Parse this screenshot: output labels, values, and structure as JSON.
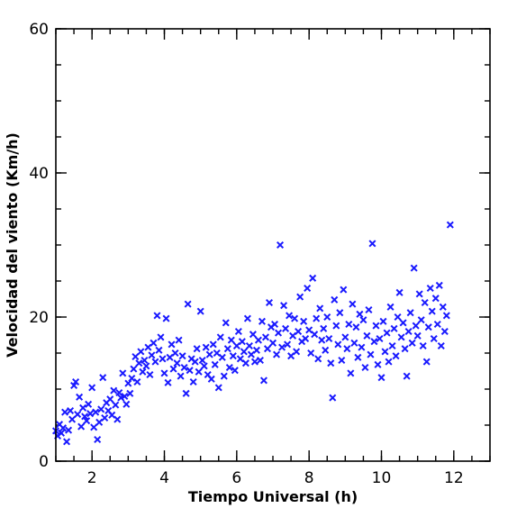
{
  "chart_data": {
    "type": "scatter",
    "title": "",
    "xlabel": "Tiempo Universal (h)",
    "ylabel": "Velocidad del viento (Km/h)",
    "xlim": [
      1,
      13
    ],
    "ylim": [
      0,
      60
    ],
    "x_major_ticks": [
      2,
      4,
      6,
      8,
      10,
      12
    ],
    "x_major_labels": [
      "2",
      "4",
      "6",
      "8",
      "10",
      "12"
    ],
    "y_major_ticks": [
      0,
      20,
      40,
      60
    ],
    "y_major_labels": [
      "0",
      "20",
      "40",
      "60"
    ],
    "x_minor_step": 0.5,
    "y_minor_step": 5,
    "grid": false,
    "marker": "x",
    "marker_color": "#1a1aff",
    "series": [
      {
        "name": "",
        "points": [
          [
            1.0,
            4.2
          ],
          [
            1.05,
            3.5
          ],
          [
            1.1,
            5.1
          ],
          [
            1.15,
            3.9
          ],
          [
            1.2,
            4.6
          ],
          [
            1.25,
            6.8
          ],
          [
            1.3,
            2.7
          ],
          [
            1.35,
            4.3
          ],
          [
            1.4,
            7.0
          ],
          [
            1.45,
            5.8
          ],
          [
            1.5,
            10.5
          ],
          [
            1.55,
            11.0
          ],
          [
            1.6,
            6.5
          ],
          [
            1.65,
            8.9
          ],
          [
            1.7,
            4.8
          ],
          [
            1.75,
            7.4
          ],
          [
            1.8,
            6.2
          ],
          [
            1.85,
            5.6
          ],
          [
            1.9,
            7.9
          ],
          [
            1.95,
            6.6
          ],
          [
            2.0,
            10.2
          ],
          [
            2.05,
            4.7
          ],
          [
            2.1,
            6.8
          ],
          [
            2.15,
            3.0
          ],
          [
            2.2,
            5.4
          ],
          [
            2.25,
            7.2
          ],
          [
            2.3,
            11.6
          ],
          [
            2.35,
            6.0
          ],
          [
            2.4,
            8.1
          ],
          [
            2.45,
            7.0
          ],
          [
            2.5,
            8.6
          ],
          [
            2.55,
            6.4
          ],
          [
            2.6,
            9.8
          ],
          [
            2.65,
            7.8
          ],
          [
            2.7,
            5.8
          ],
          [
            2.75,
            9.5
          ],
          [
            2.8,
            8.8
          ],
          [
            2.85,
            12.2
          ],
          [
            2.9,
            9.0
          ],
          [
            2.95,
            7.9
          ],
          [
            3.0,
            10.8
          ],
          [
            3.05,
            9.4
          ],
          [
            3.1,
            11.5
          ],
          [
            3.15,
            12.8
          ],
          [
            3.2,
            14.5
          ],
          [
            3.25,
            11.0
          ],
          [
            3.3,
            13.6
          ],
          [
            3.35,
            15.2
          ],
          [
            3.4,
            12.4
          ],
          [
            3.45,
            14.0
          ],
          [
            3.5,
            13.2
          ],
          [
            3.55,
            15.8
          ],
          [
            3.6,
            12.0
          ],
          [
            3.65,
            14.7
          ],
          [
            3.7,
            16.4
          ],
          [
            3.75,
            13.8
          ],
          [
            3.8,
            20.2
          ],
          [
            3.85,
            15.4
          ],
          [
            3.9,
            17.2
          ],
          [
            3.95,
            14.2
          ],
          [
            4.0,
            12.2
          ],
          [
            4.05,
            19.8
          ],
          [
            4.1,
            10.9
          ],
          [
            4.15,
            14.4
          ],
          [
            4.2,
            16.2
          ],
          [
            4.25,
            12.8
          ],
          [
            4.3,
            15.0
          ],
          [
            4.35,
            13.6
          ],
          [
            4.4,
            16.8
          ],
          [
            4.45,
            11.8
          ],
          [
            4.5,
            14.6
          ],
          [
            4.55,
            13.0
          ],
          [
            4.6,
            9.4
          ],
          [
            4.65,
            21.8
          ],
          [
            4.7,
            12.6
          ],
          [
            4.75,
            14.2
          ],
          [
            4.8,
            11.0
          ],
          [
            4.85,
            13.8
          ],
          [
            4.9,
            15.6
          ],
          [
            4.95,
            12.4
          ],
          [
            5.0,
            20.8
          ],
          [
            5.05,
            14.0
          ],
          [
            5.1,
            13.2
          ],
          [
            5.15,
            15.8
          ],
          [
            5.2,
            12.0
          ],
          [
            5.25,
            14.8
          ],
          [
            5.3,
            11.4
          ],
          [
            5.35,
            16.2
          ],
          [
            5.4,
            13.4
          ],
          [
            5.45,
            15.0
          ],
          [
            5.5,
            10.2
          ],
          [
            5.55,
            17.2
          ],
          [
            5.6,
            14.4
          ],
          [
            5.65,
            11.8
          ],
          [
            5.7,
            19.2
          ],
          [
            5.75,
            15.6
          ],
          [
            5.8,
            13.0
          ],
          [
            5.85,
            16.8
          ],
          [
            5.9,
            14.6
          ],
          [
            5.95,
            12.6
          ],
          [
            6.0,
            16.0
          ],
          [
            6.05,
            18.0
          ],
          [
            6.1,
            14.2
          ],
          [
            6.15,
            16.6
          ],
          [
            6.2,
            15.2
          ],
          [
            6.25,
            13.6
          ],
          [
            6.3,
            19.8
          ],
          [
            6.35,
            16.0
          ],
          [
            6.4,
            14.8
          ],
          [
            6.45,
            17.6
          ],
          [
            6.5,
            13.8
          ],
          [
            6.55,
            15.4
          ],
          [
            6.6,
            16.8
          ],
          [
            6.65,
            14.0
          ],
          [
            6.7,
            19.4
          ],
          [
            6.75,
            11.2
          ],
          [
            6.8,
            17.2
          ],
          [
            6.85,
            15.6
          ],
          [
            6.9,
            22.0
          ],
          [
            6.95,
            18.6
          ],
          [
            7.0,
            16.4
          ],
          [
            7.05,
            19.0
          ],
          [
            7.1,
            14.8
          ],
          [
            7.15,
            17.8
          ],
          [
            7.2,
            30.0
          ],
          [
            7.25,
            15.8
          ],
          [
            7.3,
            21.6
          ],
          [
            7.35,
            18.4
          ],
          [
            7.4,
            16.2
          ],
          [
            7.45,
            20.2
          ],
          [
            7.5,
            14.6
          ],
          [
            7.55,
            17.4
          ],
          [
            7.6,
            19.8
          ],
          [
            7.65,
            15.2
          ],
          [
            7.7,
            18.0
          ],
          [
            7.75,
            22.8
          ],
          [
            7.8,
            16.6
          ],
          [
            7.85,
            19.4
          ],
          [
            7.9,
            17.0
          ],
          [
            7.95,
            24.0
          ],
          [
            8.0,
            18.2
          ],
          [
            8.05,
            15.0
          ],
          [
            8.1,
            25.4
          ],
          [
            8.15,
            17.6
          ],
          [
            8.2,
            19.8
          ],
          [
            8.25,
            14.2
          ],
          [
            8.3,
            21.2
          ],
          [
            8.35,
            16.8
          ],
          [
            8.4,
            18.4
          ],
          [
            8.45,
            15.4
          ],
          [
            8.5,
            20.0
          ],
          [
            8.55,
            17.0
          ],
          [
            8.6,
            13.6
          ],
          [
            8.65,
            8.8
          ],
          [
            8.7,
            22.4
          ],
          [
            8.75,
            18.8
          ],
          [
            8.8,
            16.2
          ],
          [
            8.85,
            20.6
          ],
          [
            8.9,
            14.0
          ],
          [
            8.95,
            23.8
          ],
          [
            9.0,
            17.2
          ],
          [
            9.05,
            15.6
          ],
          [
            9.1,
            19.0
          ],
          [
            9.15,
            12.2
          ],
          [
            9.2,
            21.8
          ],
          [
            9.25,
            16.4
          ],
          [
            9.3,
            18.6
          ],
          [
            9.35,
            14.4
          ],
          [
            9.4,
            20.4
          ],
          [
            9.45,
            15.8
          ],
          [
            9.5,
            19.6
          ],
          [
            9.55,
            13.0
          ],
          [
            9.6,
            17.4
          ],
          [
            9.65,
            21.0
          ],
          [
            9.7,
            14.8
          ],
          [
            9.75,
            30.2
          ],
          [
            9.8,
            16.6
          ],
          [
            9.85,
            18.8
          ],
          [
            9.9,
            13.4
          ],
          [
            9.95,
            17.0
          ],
          [
            10.0,
            11.6
          ],
          [
            10.05,
            19.4
          ],
          [
            10.1,
            15.2
          ],
          [
            10.15,
            17.8
          ],
          [
            10.2,
            13.8
          ],
          [
            10.25,
            21.4
          ],
          [
            10.3,
            16.0
          ],
          [
            10.35,
            18.4
          ],
          [
            10.4,
            14.6
          ],
          [
            10.45,
            20.0
          ],
          [
            10.5,
            23.4
          ],
          [
            10.55,
            17.2
          ],
          [
            10.6,
            19.2
          ],
          [
            10.65,
            15.6
          ],
          [
            10.7,
            11.8
          ],
          [
            10.75,
            18.0
          ],
          [
            10.8,
            20.6
          ],
          [
            10.85,
            16.4
          ],
          [
            10.9,
            26.8
          ],
          [
            10.95,
            18.8
          ],
          [
            11.0,
            17.4
          ],
          [
            11.05,
            23.2
          ],
          [
            11.1,
            19.6
          ],
          [
            11.15,
            16.0
          ],
          [
            11.2,
            22.0
          ],
          [
            11.25,
            13.8
          ],
          [
            11.3,
            18.6
          ],
          [
            11.35,
            24.0
          ],
          [
            11.4,
            20.8
          ],
          [
            11.45,
            17.0
          ],
          [
            11.5,
            22.6
          ],
          [
            11.55,
            19.0
          ],
          [
            11.6,
            24.4
          ],
          [
            11.65,
            16.0
          ],
          [
            11.7,
            21.4
          ],
          [
            11.75,
            18.0
          ],
          [
            11.8,
            20.2
          ],
          [
            11.9,
            32.8
          ]
        ]
      }
    ]
  }
}
